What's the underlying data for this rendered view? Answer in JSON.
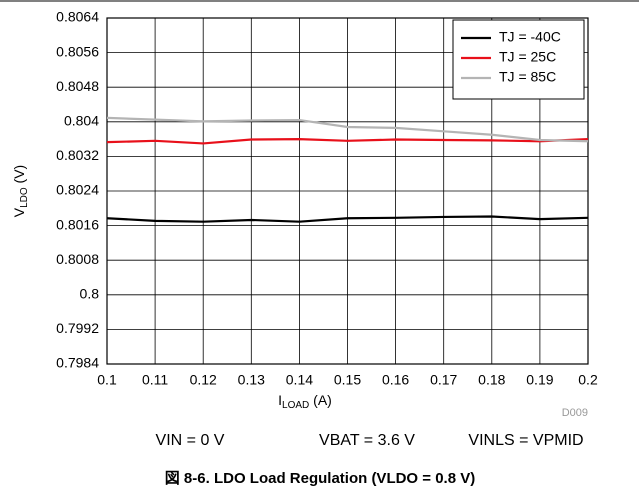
{
  "chart_data": {
    "type": "line",
    "xlabel": [
      "I",
      "LOAD",
      " (A)"
    ],
    "ylabel": [
      "V",
      "LDO",
      " (V)"
    ],
    "x": [
      0.1,
      0.11,
      0.12,
      0.13,
      0.14,
      0.15,
      0.16,
      0.17,
      0.18,
      0.19,
      0.2
    ],
    "series": [
      {
        "name": "TJ = -40C",
        "color": "#000000",
        "values": [
          0.80177,
          0.80171,
          0.80169,
          0.80173,
          0.80169,
          0.80177,
          0.80178,
          0.8018,
          0.80181,
          0.80175,
          0.80178
        ]
      },
      {
        "name": "TJ = 25C",
        "color": "#e8101a",
        "values": [
          0.80353,
          0.80356,
          0.8035,
          0.80359,
          0.8036,
          0.80356,
          0.80359,
          0.80358,
          0.80357,
          0.80355,
          0.8036
        ]
      },
      {
        "name": "TJ = 85C",
        "color": "#b4b4b4",
        "values": [
          0.80409,
          0.80405,
          0.80401,
          0.80403,
          0.80404,
          0.80388,
          0.80386,
          0.80378,
          0.8037,
          0.80358,
          0.80355
        ]
      }
    ],
    "xlim": [
      0.1,
      0.2
    ],
    "xticks": [
      0.1,
      0.11,
      0.12,
      0.13,
      0.14,
      0.15,
      0.16,
      0.17,
      0.18,
      0.19,
      0.2
    ],
    "ylim": [
      0.7984,
      0.8064
    ],
    "yticks": [
      0.7984,
      0.7992,
      0.8,
      0.8008,
      0.8016,
      0.8024,
      0.8032,
      0.804,
      0.8048,
      0.8056,
      0.8064
    ],
    "grid": true,
    "legend": "upper right",
    "id_label": "D009",
    "conditions": [
      "VIN = 0 V",
      "VBAT = 3.6 V",
      "VINLS = VPMID"
    ],
    "caption": "図 8-6. LDO Load Regulation (VLDO = 0.8 V)"
  }
}
